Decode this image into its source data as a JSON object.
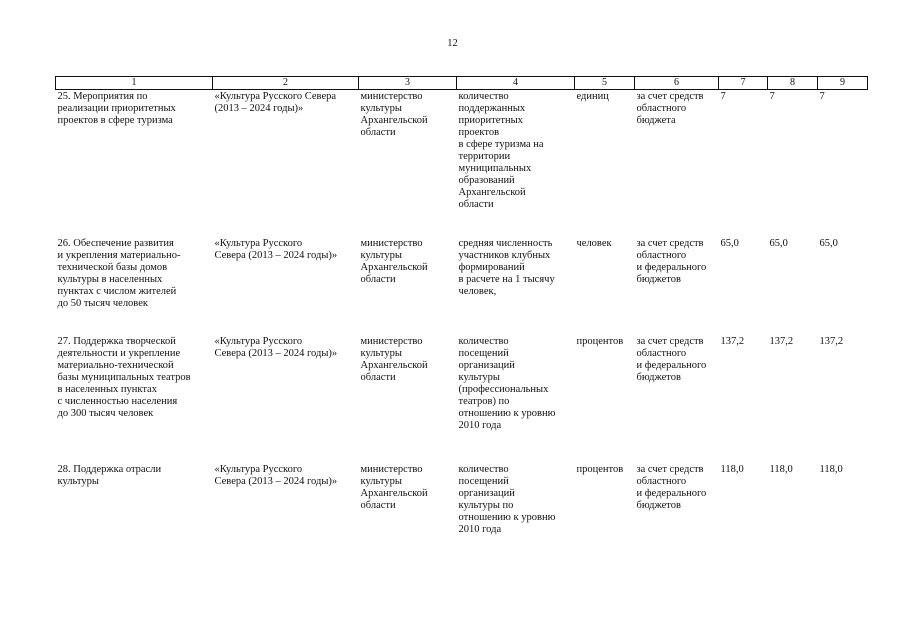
{
  "page_number": "12",
  "columns": [
    "1",
    "2",
    "3",
    "4",
    "5",
    "6",
    "7",
    "8",
    "9"
  ],
  "rows": [
    {
      "event": "25. Мероприятия по\nреализации приоритетных\nпроектов в сфере туризма",
      "program": "«Культура Русского Севера\n(2013 – 2024 годы)»",
      "ministry": "министерство\nкультуры\nАрхангельской\nобласти",
      "indicator": "количество\nподдержанных\nприоритетных\nпроектов\nв сфере туризма на\nтерритории\nмуниципальных\nобразований\nАрхангельской\nобласти",
      "unit": "единиц",
      "funding": "за счет средств\nобластного\nбюджета",
      "v7": "7",
      "v8": "7",
      "v9": "7"
    },
    {
      "event": "26. Обеспечение развития\nи укрепления материально-\nтехнической базы домов\nкультуры в населенных\nпунктах с числом жителей\nдо 50 тысяч человек",
      "program": "«Культура Русского\nСевера (2013 – 2024 годы)»",
      "ministry": "министерство\nкультуры\nАрхангельской\nобласти",
      "indicator": "средняя численность\nучастников клубных\nформирований\nв расчете на 1 тысячу\nчеловек,",
      "unit": "человек",
      "funding": "за счет средств\nобластного\nи федерального\nбюджетов",
      "v7": "65,0",
      "v8": "65,0",
      "v9": "65,0"
    },
    {
      "event": "27. Поддержка творческой\nдеятельности и укрепление\nматериально-технической\nбазы муниципальных театров\nв населенных пунктах\nс численностью населения\nдо 300 тысяч человек",
      "program": "«Культура Русского\nСевера (2013 – 2024 годы)»",
      "ministry": "министерство\nкультуры\nАрхангельской\nобласти",
      "indicator": "количество\nпосещений\nорганизаций\nкультуры\n(профессиональных\nтеатров) по\nотношению к уровню\n2010 года",
      "unit": "процентов",
      "funding": "за счет средств\nобластного\nи федерального\nбюджетов",
      "v7": "137,2",
      "v8": "137,2",
      "v9": "137,2"
    },
    {
      "event": "28. Поддержка отрасли\nкультуры",
      "program": "«Культура Русского\nСевера (2013 – 2024 годы)»",
      "ministry": "министерство\nкультуры\nАрхангельской\nобласти",
      "indicator": "количество\nпосещений\nорганизаций\nкультуры по\nотношению к уровню\n2010 года",
      "unit": "процентов",
      "funding": "за счет средств\nобластного\nи федерального\nбюджетов",
      "v7": "118,0",
      "v8": "118,0",
      "v9": "118,0"
    }
  ]
}
